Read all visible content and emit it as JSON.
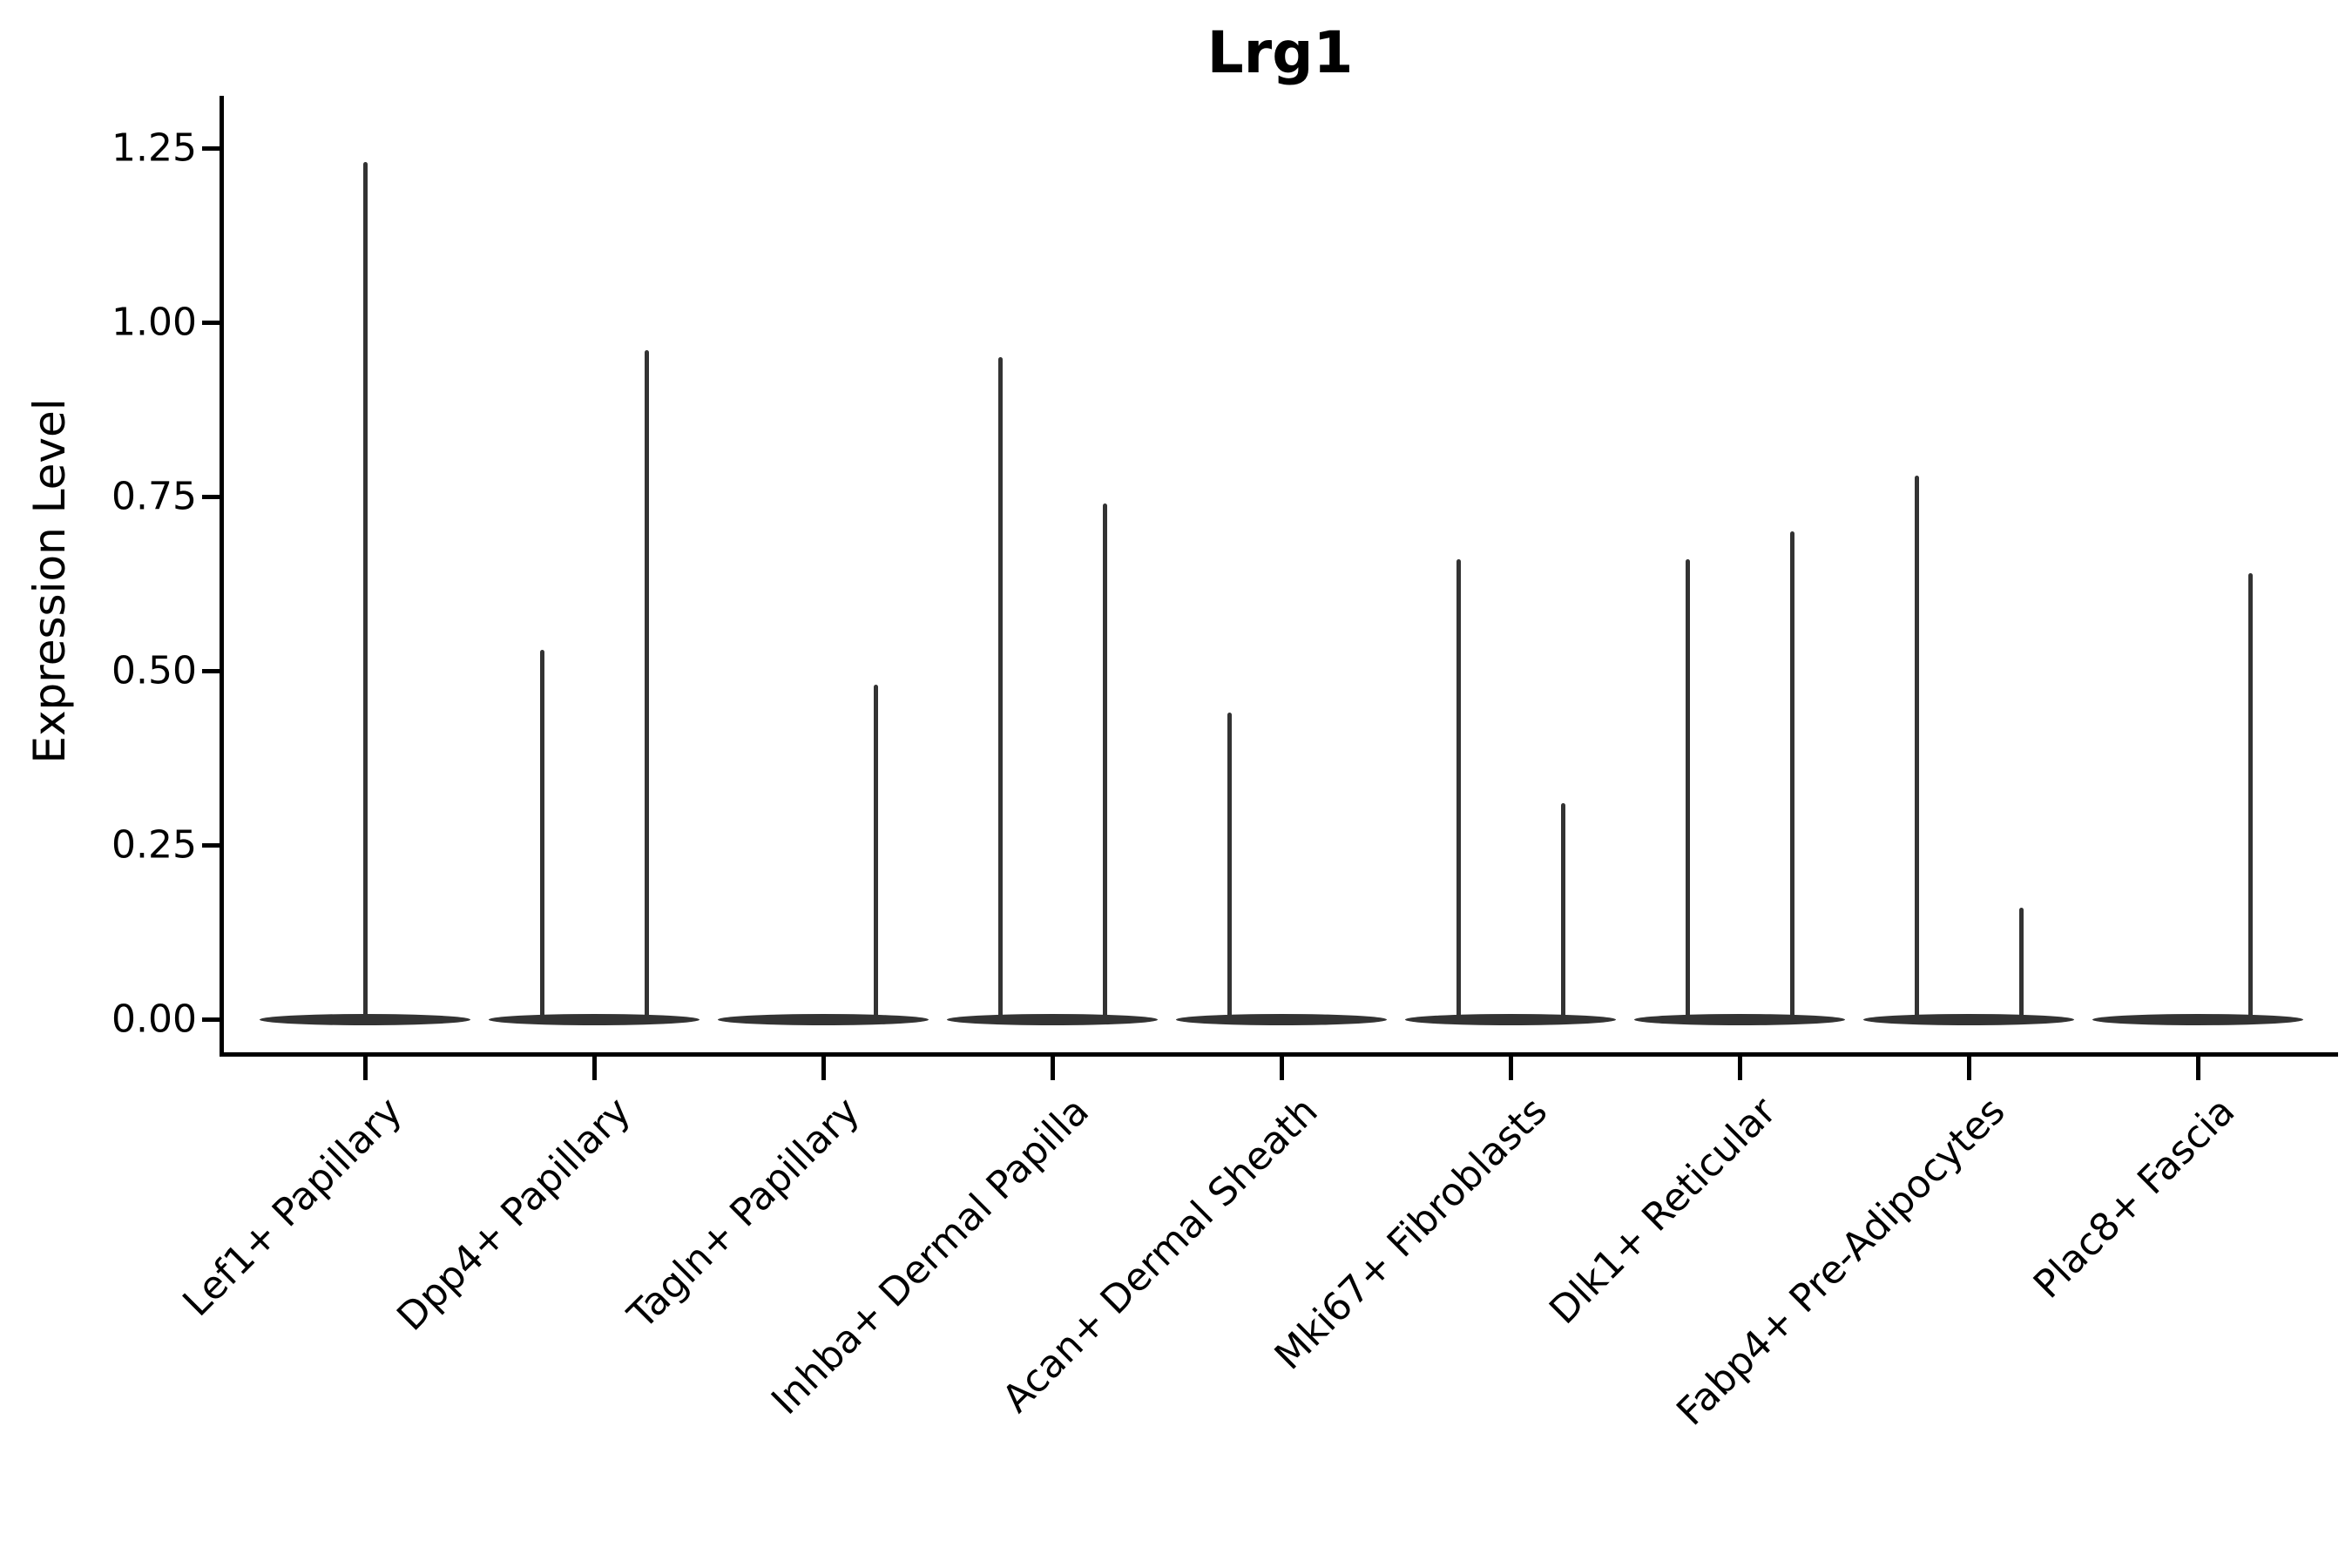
{
  "chart_data": {
    "type": "violin",
    "title": "Lrg1",
    "ylabel": "Expression Level",
    "xlabel": "",
    "ylim": [
      0,
      1.25
    ],
    "ytick_values": [
      0.0,
      0.25,
      0.5,
      0.75,
      1.0,
      1.25
    ],
    "ytick_labels": [
      "0.00",
      "0.25",
      "0.50",
      "0.75",
      "1.00",
      "1.25"
    ],
    "grid": "off",
    "legend": "none",
    "line_color": "#333333",
    "axis_color": "#000000",
    "note": "Each cluster shows a flat violin body at expression 0 with thin density spikes; spike position is left/center/right within the cluster slot; value is the spike top (max expression).",
    "categories": [
      "Lef1+ Papillary",
      "Dpp4+ Papillary",
      "Tagln+ Papillary",
      "Inhba+ Dermal Papilla",
      "Acan+ Dermal Sheath",
      "Mki67+ Fibroblasts",
      "Dlk1+ Reticular",
      "Fabp4+ Pre-Adipocytes",
      "Plac8+ Fascia"
    ],
    "series": [
      {
        "category": "Lef1+ Papillary",
        "spikes": [
          {
            "position": "center",
            "max": 1.23
          }
        ]
      },
      {
        "category": "Dpp4+ Papillary",
        "spikes": [
          {
            "position": "left",
            "max": 0.53
          },
          {
            "position": "right",
            "max": 0.96
          }
        ]
      },
      {
        "category": "Tagln+ Papillary",
        "spikes": [
          {
            "position": "right",
            "max": 0.48
          }
        ]
      },
      {
        "category": "Inhba+ Dermal Papilla",
        "spikes": [
          {
            "position": "left",
            "max": 0.95
          },
          {
            "position": "right",
            "max": 0.74
          }
        ]
      },
      {
        "category": "Acan+ Dermal Sheath",
        "spikes": [
          {
            "position": "left",
            "max": 0.44
          }
        ]
      },
      {
        "category": "Mki67+ Fibroblasts",
        "spikes": [
          {
            "position": "left",
            "max": 0.66
          },
          {
            "position": "right",
            "max": 0.31
          }
        ]
      },
      {
        "category": "Dlk1+ Reticular",
        "spikes": [
          {
            "position": "left",
            "max": 0.66
          },
          {
            "position": "right",
            "max": 0.7
          }
        ]
      },
      {
        "category": "Fabp4+ Pre-Adipocytes",
        "spikes": [
          {
            "position": "left",
            "max": 0.78
          },
          {
            "position": "right",
            "max": 0.16
          }
        ]
      },
      {
        "category": "Plac8+ Fascia",
        "spikes": [
          {
            "position": "right",
            "max": 0.64
          }
        ]
      }
    ]
  }
}
